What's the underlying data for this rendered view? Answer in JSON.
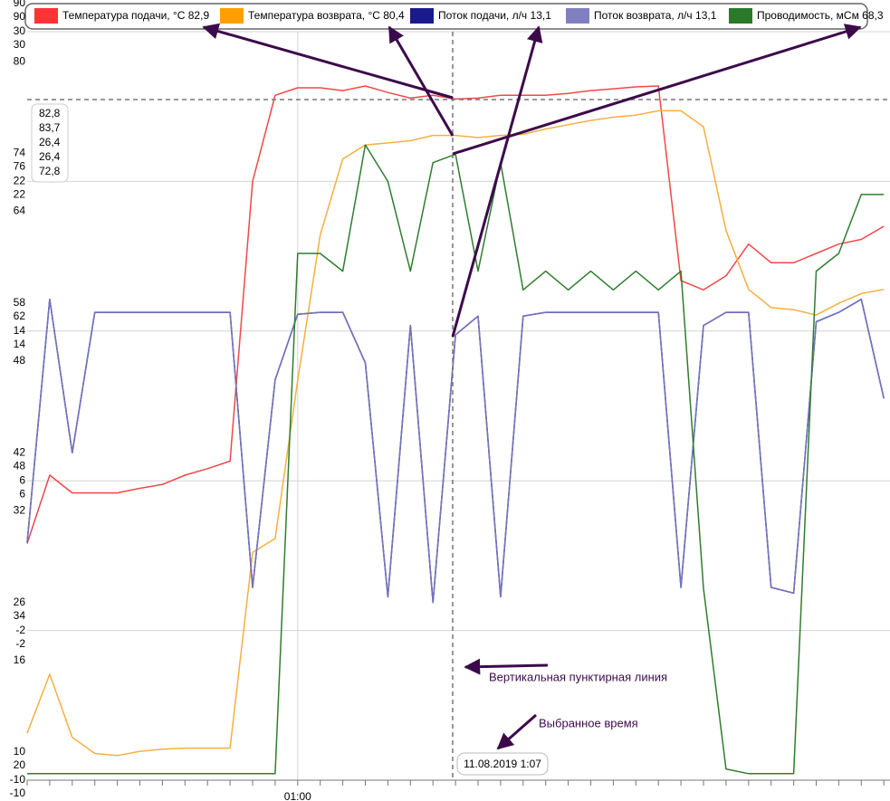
{
  "chart_data": {
    "type": "line",
    "x": [
      null,
      null,
      null,
      null,
      null,
      null,
      null,
      null,
      null,
      null,
      null,
      null,
      "01:00",
      null,
      null,
      null,
      null,
      null,
      null,
      null,
      null,
      null,
      null,
      null,
      null,
      null,
      null,
      null,
      null,
      null,
      null,
      null,
      null,
      null,
      null,
      null,
      null,
      null,
      null
    ],
    "y_axes": [
      {
        "ylim": [
          10,
          90
        ],
        "yticks": [
          10,
          26,
          42,
          58,
          74,
          90
        ]
      },
      {
        "ylim": [
          20,
          90
        ],
        "yticks": [
          20,
          34,
          48,
          62,
          76,
          90
        ]
      },
      {
        "ylim": [
          -10,
          30
        ],
        "yticks": [
          -10,
          -2,
          6,
          14,
          22,
          30
        ]
      },
      {
        "ylim": [
          -10,
          30
        ],
        "yticks": [
          -10,
          -2,
          6,
          14,
          22,
          30
        ]
      },
      {
        "ylim": [
          3.2,
          83.2
        ],
        "yticks": [
          16,
          32,
          48,
          64,
          80
        ]
      }
    ],
    "grid": true,
    "series": [
      {
        "name": "Температура подачи, °С 82,9",
        "color": "#f04848",
        "legend_color": "#ff3333",
        "axis": 0,
        "values": [
          35.3,
          42.6,
          40.7,
          40.7,
          40.7,
          41.2,
          41.6,
          42.6,
          43.3,
          44.1,
          74.0,
          83.2,
          84.0,
          84.0,
          83.7,
          84.2,
          83.5,
          82.9,
          83.2,
          82.8,
          82.9,
          83.2,
          83.2,
          83.2,
          83.4,
          83.7,
          83.9,
          84.1,
          84.2,
          63.4,
          62.4,
          63.9,
          67.3,
          65.3,
          65.3,
          66.3,
          67.3,
          67.8,
          69.2
        ]
      },
      {
        "name": "Температура возврата, °С 80,4",
        "color": "#f5b040",
        "legend_color": "#ffa000",
        "axis": 1,
        "values": [
          24.4,
          29.9,
          24.0,
          22.5,
          22.3,
          22.7,
          22.9,
          23.0,
          23.0,
          23.0,
          41.3,
          42.6,
          57.4,
          71.0,
          78.1,
          79.4,
          79.6,
          79.8,
          80.3,
          80.3,
          80.1,
          80.3,
          80.4,
          80.9,
          81.3,
          81.7,
          82.0,
          82.2,
          82.6,
          82.6,
          81.1,
          71.4,
          65.9,
          64.2,
          64.0,
          63.5,
          64.6,
          65.5,
          65.9
        ]
      },
      {
        "name": "Поток подачи, л/ч 13,1",
        "color": "#1a1a8c",
        "legend_color": "#1a1a8c",
        "axis": 2,
        "values": [
          2.7,
          15.7,
          7.5,
          15.0,
          15.0,
          15.0,
          15.0,
          15.0,
          15.0,
          15.0,
          0.3,
          11.4,
          14.9,
          15.0,
          15.0,
          12.3,
          -0.2,
          14.3,
          -0.5,
          13.8,
          14.8,
          -0.2,
          14.8,
          15.0,
          15.0,
          15.0,
          15.0,
          15.0,
          15.0,
          0.3,
          14.3,
          15.0,
          15.0,
          0.3,
          0.0,
          14.5,
          15.0,
          15.7,
          10.4
        ]
      },
      {
        "name": "Поток возврата, л/ч 13,1",
        "color": "#7474bb",
        "legend_color": "#8080c0",
        "axis": 3,
        "values": [
          2.7,
          15.7,
          7.5,
          15.0,
          15.0,
          15.0,
          15.0,
          15.0,
          15.0,
          15.0,
          0.3,
          11.4,
          14.9,
          15.0,
          15.0,
          12.3,
          -0.2,
          14.3,
          -0.5,
          13.8,
          14.8,
          -0.2,
          14.8,
          15.0,
          15.0,
          15.0,
          15.0,
          15.0,
          15.0,
          0.3,
          14.3,
          15.0,
          15.0,
          0.3,
          0.0,
          14.5,
          15.0,
          15.7,
          10.4
        ]
      },
      {
        "name": "Проводимость, мСм 68,3",
        "color": "#2f7d2f",
        "legend_color": "#2a7a2a",
        "axis": 4,
        "values": [
          3.9,
          3.9,
          3.9,
          3.9,
          3.9,
          3.9,
          3.9,
          3.9,
          3.9,
          3.9,
          3.9,
          3.9,
          59.5,
          59.5,
          57.6,
          71.1,
          67.2,
          57.6,
          69.2,
          70.1,
          57.6,
          69.2,
          55.6,
          57.6,
          55.6,
          57.6,
          55.6,
          57.6,
          55.6,
          57.6,
          23.7,
          4.4,
          3.9,
          3.9,
          3.9,
          57.6,
          59.5,
          65.8,
          65.8
        ]
      }
    ],
    "tooltip": [
      "82,8",
      "83,7",
      "26,4",
      "26,4",
      "72,8"
    ],
    "selected_time": "11.08.2019 1:07",
    "annotations": [
      "Вертикальная пунктирная линия",
      "Выбранное время"
    ]
  }
}
